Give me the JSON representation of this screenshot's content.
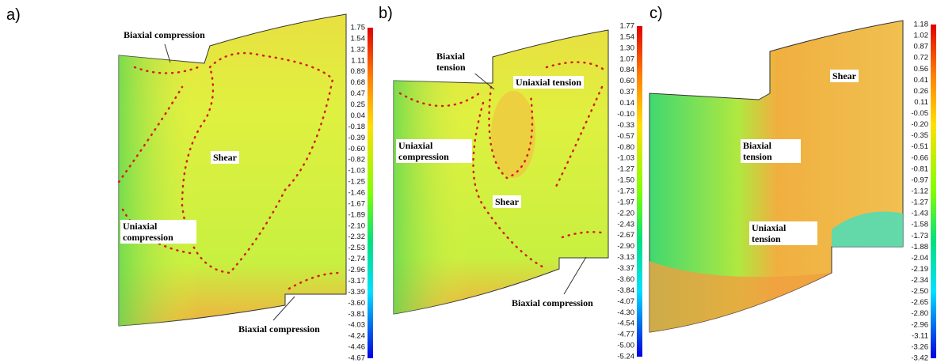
{
  "panels": [
    {
      "label": "a)",
      "annotations": [
        "Biaxial compression",
        "Shear",
        "Uniaxial compression",
        "Biaxial compression"
      ],
      "colorbar": [
        "1.75",
        "1.54",
        "1.32",
        "1.11",
        "0.89",
        "0.68",
        "0.47",
        "0.25",
        "0.04",
        "-0.18",
        "-0.39",
        "-0.60",
        "-0.82",
        "-1.03",
        "-1.25",
        "-1.46",
        "-1.67",
        "-1.89",
        "-2.10",
        "-2.32",
        "-2.53",
        "-2.74",
        "-2.96",
        "-3.17",
        "-3.39",
        "-3.60",
        "-3.81",
        "-4.03",
        "-4.24",
        "-4.46",
        "-4.67"
      ]
    },
    {
      "label": "b)",
      "annotations": [
        "Biaxial tension",
        "Uniaxial tension",
        "Uniaxial compression",
        "Shear",
        "Biaxial compression"
      ],
      "colorbar": [
        "1.77",
        "1.54",
        "1.30",
        "1.07",
        "0.84",
        "0.60",
        "0.37",
        "0.14",
        "-0.10",
        "-0.33",
        "-0.57",
        "-0.80",
        "-1.03",
        "-1.27",
        "-1.50",
        "-1.73",
        "-1.97",
        "-2.20",
        "-2.43",
        "-2.67",
        "-2.90",
        "-3.13",
        "-3.37",
        "-3.60",
        "-3.84",
        "-4.07",
        "-4.30",
        "-4.54",
        "-4.77",
        "-5.00",
        "-5.24"
      ]
    },
    {
      "label": "c)",
      "annotations": [
        "Shear",
        "Biaxial tension",
        "Uniaxial tension"
      ],
      "colorbar": [
        "1.18",
        "1.02",
        "0.87",
        "0.72",
        "0.56",
        "0.41",
        "0.26",
        "0.11",
        "-0.05",
        "-0.20",
        "-0.35",
        "-0.51",
        "-0.66",
        "-0.81",
        "-0.97",
        "-1.12",
        "-1.27",
        "-1.43",
        "-1.58",
        "-1.73",
        "-1.88",
        "-2.04",
        "-2.19",
        "-2.34",
        "-2.50",
        "-2.65",
        "-2.80",
        "-2.96",
        "-3.11",
        "-3.26",
        "-3.42"
      ]
    }
  ]
}
